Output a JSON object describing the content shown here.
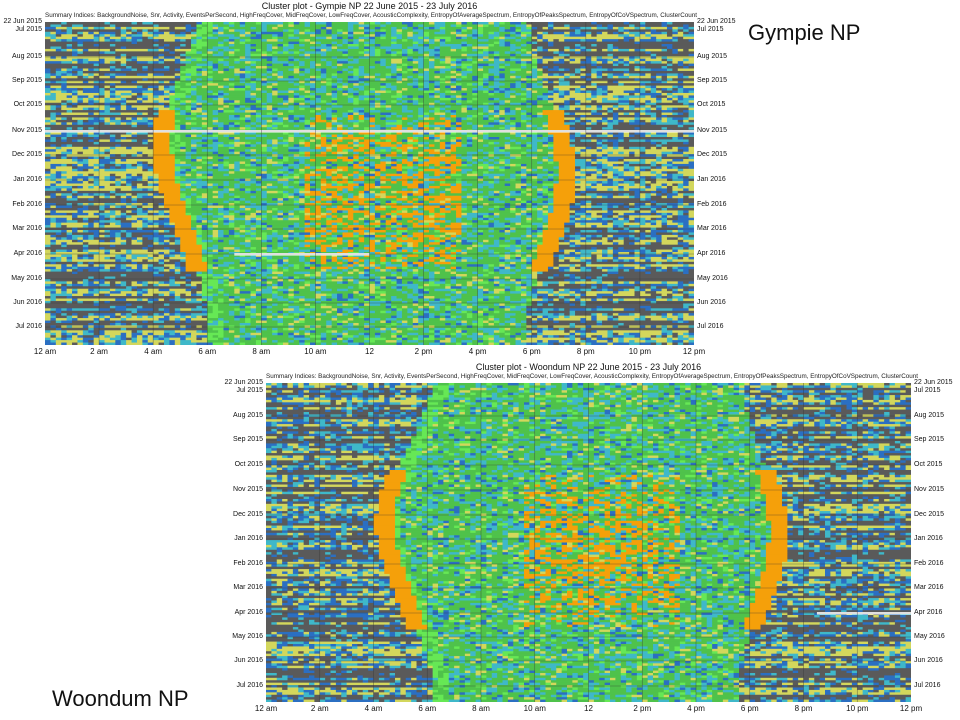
{
  "chart_data": [
    {
      "type": "heatmap",
      "title": "Cluster plot - Gympie NP 22 June 2015 - 23 July 2016",
      "subtitle": "Summary Indices: BackgroundNoise, Snr, Activity, EventsPerSecond, HighFreqCover, MidFreqCover, LowFreqCover, AcousticComplexity, EntropyOfAverageSpectrum, EntropyOfPeaksSpectrum, EntropyOfCoVSpectrum, ClusterCount",
      "site_label": "Gympie NP",
      "x_ticks": [
        "12 am",
        "2 am",
        "4 am",
        "6 am",
        "8 am",
        "10 am",
        "12",
        "2 pm",
        "4 pm",
        "6 pm",
        "8 pm",
        "10 pm",
        "12 pm"
      ],
      "y_ticks": [
        "22 Jun 2015",
        "Jul 2015",
        "Aug 2015",
        "Sep 2015",
        "Oct 2015",
        "Nov 2015",
        "Dec 2015",
        "Jan 2016",
        "Feb 2016",
        "Mar 2016",
        "Apr 2016",
        "May 2016",
        "Jun 2016",
        "Jul 2016"
      ],
      "x_range_hours": [
        0,
        24
      ],
      "y_range": [
        "22 Jun 2015",
        "23 Jul 2016"
      ],
      "sunrise_hour": [
        5.7,
        5.3,
        4.9,
        4.5,
        4.3,
        4.4,
        4.7,
        5.1,
        5.5,
        5.8,
        6.0,
        6.1
      ],
      "sunset_hour": [
        17.9,
        18.1,
        18.4,
        18.8,
        19.1,
        19.3,
        19.2,
        18.9,
        18.5,
        18.1,
        17.8,
        17.7
      ],
      "gap_rows": [
        {
          "date": "Nov 2015",
          "start_hour": 0,
          "end_hour": 24
        },
        {
          "date": "Apr 2016",
          "start_hour": 7,
          "end_hour": 12
        }
      ],
      "cluster_colors": {
        "night": "#5a5a5a",
        "blue": "#2b6fc2",
        "cyan": "#3fb8c9",
        "yellow": "#d3d75c",
        "green": "#4fc24b",
        "light_green": "#66e855",
        "orange": "#f5a00a"
      },
      "grid": true
    },
    {
      "type": "heatmap",
      "title": "Cluster plot - Woondum NP 22 June 2015 - 23 July 2016",
      "subtitle": "Summary Indices: BackgroundNoise, Snr, Activity, EventsPerSecond, HighFreqCover, MidFreqCover, LowFreqCover, AcousticComplexity, EntropyOfAverageSpectrum, EntropyOfPeaksSpectrum, EntropyOfCoVSpectrum, ClusterCount",
      "site_label": "Woondum NP",
      "x_ticks": [
        "12 am",
        "2 am",
        "4 am",
        "6 am",
        "8 am",
        "10 am",
        "12",
        "2 pm",
        "4 pm",
        "6 pm",
        "8 pm",
        "10 pm",
        "12 pm"
      ],
      "y_ticks": [
        "22 Jun 2015",
        "Jul 2015",
        "Aug 2015",
        "Sep 2015",
        "Oct 2015",
        "Nov 2015",
        "Dec 2015",
        "Jan 2016",
        "Feb 2016",
        "Mar 2016",
        "Apr 2016",
        "May 2016",
        "Jun 2016",
        "Jul 2016"
      ],
      "x_range_hours": [
        0,
        24
      ],
      "y_range": [
        "22 Jun 2015",
        "23 Jul 2016"
      ],
      "sunrise_hour": [
        6.3,
        5.9,
        5.4,
        4.9,
        4.5,
        4.4,
        4.6,
        5.0,
        5.4,
        5.8,
        6.2,
        6.3
      ],
      "sunset_hour": [
        17.8,
        17.9,
        18.2,
        18.6,
        18.9,
        19.1,
        19.0,
        18.7,
        18.3,
        17.9,
        17.6,
        17.5
      ],
      "gap_rows": [
        {
          "date": "Apr 2016",
          "start_hour": 20.5,
          "end_hour": 24
        }
      ],
      "cluster_colors": {
        "night": "#5a5a5a",
        "blue": "#2b6fc2",
        "cyan": "#3fb8c9",
        "yellow": "#d3d75c",
        "green": "#4fc24b",
        "light_green": "#66e855",
        "orange": "#f5a00a"
      },
      "grid": true
    }
  ]
}
